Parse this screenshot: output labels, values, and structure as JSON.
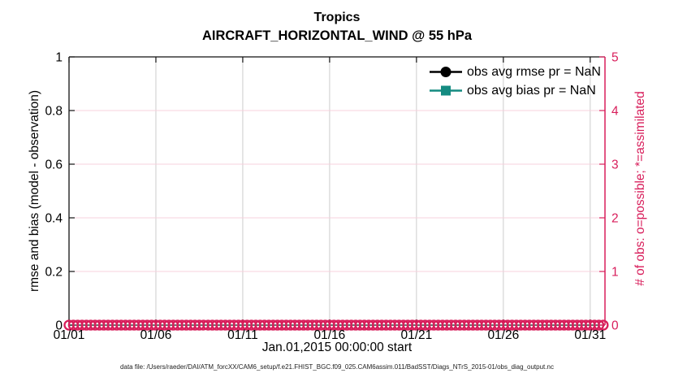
{
  "figure": {
    "title": "Tropics",
    "subtitle": "AIRCRAFT_HORIZONTAL_WIND @ 55 hPa",
    "footer": "data file: /Users/raeder/DAI/ATM_forcXX/CAM6_setup/f.e21.FHIST_BGC.f09_025.CAM6assim.011/BadSST/Diags_NTrS_2015-01/obs_diag_output.nc"
  },
  "chart_data": {
    "type": "line",
    "title": "Tropics",
    "subtitle": "AIRCRAFT_HORIZONTAL_WIND @ 55 hPa",
    "xlabel": "Jan.01,2015 00:00:00 start",
    "ylabel_left": "rmse and bias (model - observation)",
    "ylabel_right": "# of obs: o=possible; *=assimilated",
    "xlim_days": [
      0,
      30.85
    ],
    "x_ticks": [
      {
        "day": 0,
        "label": "01/01"
      },
      {
        "day": 5,
        "label": "01/06"
      },
      {
        "day": 10,
        "label": "01/11"
      },
      {
        "day": 15,
        "label": "01/16"
      },
      {
        "day": 20,
        "label": "01/21"
      },
      {
        "day": 25,
        "label": "01/26"
      },
      {
        "day": 30,
        "label": "01/31"
      }
    ],
    "ylim_left": [
      0,
      1
    ],
    "yticks_left": [
      0,
      0.2,
      0.4,
      0.6,
      0.8,
      1
    ],
    "ytick_labels_left": [
      "0",
      "0.2",
      "0.4",
      "0.6",
      "0.8",
      "1"
    ],
    "ylim_right": [
      0,
      5
    ],
    "yticks_right": [
      0,
      1,
      2,
      3,
      4,
      5
    ],
    "ytick_labels_right": [
      "0",
      "1",
      "2",
      "3",
      "4",
      "5"
    ],
    "grid": true,
    "legend": {
      "location": "northeast-inside",
      "box": false,
      "entries": [
        {
          "label": "obs avg rmse pr = NaN",
          "color": "#000000",
          "marker": "circle",
          "value": "NaN"
        },
        {
          "label": "obs avg bias pr = NaN",
          "color": "#148b81",
          "marker": "square",
          "value": "NaN"
        }
      ]
    },
    "series": [
      {
        "name": "obs avg rmse",
        "axis": "left",
        "color": "#000000",
        "marker": "circle",
        "values": "NaN",
        "plotted": false
      },
      {
        "name": "obs avg bias",
        "axis": "left",
        "color": "#148b81",
        "marker": "square",
        "values": "NaN",
        "plotted": false
      },
      {
        "name": "# of obs possible",
        "axis": "right",
        "color": "#d81e5b",
        "marker": "o-circle-outline",
        "x_start_day": 0,
        "x_end_day": 30.85,
        "x_step_days": 0.25,
        "y_constant": 0
      }
    ],
    "colors": {
      "right_axis": "#d81e5b",
      "obs_band": "#d81e5b",
      "grid_horizontal": "#f7d0dc",
      "grid_vertical": "#cccccc",
      "axis_black": "#111111",
      "bias_teal": "#148b81"
    }
  }
}
